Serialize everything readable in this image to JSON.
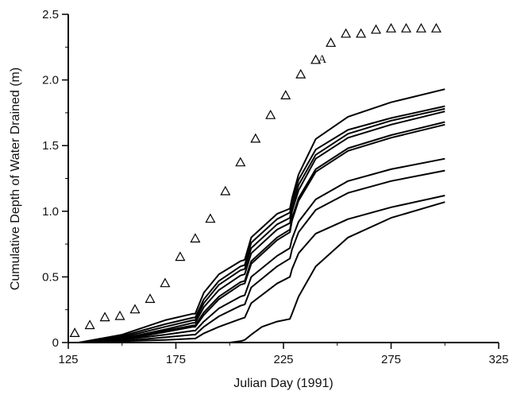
{
  "chart_data": {
    "type": "line",
    "title": "",
    "xlabel": "Julian Day (1991)",
    "ylabel": "Cumulative Depth of Water Drained (m)",
    "xlim": [
      125,
      325
    ],
    "ylim": [
      0,
      2.5
    ],
    "xticks": [
      125,
      175,
      225,
      275,
      325
    ],
    "yticks": [
      0,
      0.5,
      1.0,
      1.5,
      2.0,
      2.5
    ],
    "xtick_labels": [
      "125",
      "175",
      "225",
      "275",
      "325"
    ],
    "ytick_labels": [
      "0",
      "0.5",
      "1.0",
      "1.5",
      "2.0",
      "2.5"
    ],
    "grid": false,
    "legend": "none",
    "annotations": [
      {
        "text": "A",
        "x": 243,
        "y": 2.16
      }
    ],
    "scatter_series": {
      "marker": "open-triangle",
      "points": [
        [
          128,
          0.07
        ],
        [
          135,
          0.13
        ],
        [
          142,
          0.19
        ],
        [
          149,
          0.2
        ],
        [
          156,
          0.25
        ],
        [
          163,
          0.33
        ],
        [
          170,
          0.45
        ],
        [
          177,
          0.65
        ],
        [
          184,
          0.79
        ],
        [
          191,
          0.94
        ],
        [
          198,
          1.15
        ],
        [
          205,
          1.37
        ],
        [
          212,
          1.55
        ],
        [
          219,
          1.73
        ],
        [
          226,
          1.88
        ],
        [
          233,
          2.04
        ],
        [
          240,
          2.15
        ],
        [
          247,
          2.28
        ],
        [
          254,
          2.35
        ],
        [
          261,
          2.35
        ],
        [
          268,
          2.38
        ],
        [
          275,
          2.39
        ],
        [
          282,
          2.39
        ],
        [
          289,
          2.39
        ],
        [
          296,
          2.39
        ]
      ]
    },
    "line_series": [
      {
        "points": [
          [
            130,
            0
          ],
          [
            150,
            0.06
          ],
          [
            170,
            0.17
          ],
          [
            183,
            0.22
          ],
          [
            184,
            0.22
          ],
          [
            188,
            0.38
          ],
          [
            195,
            0.52
          ],
          [
            205,
            0.62
          ],
          [
            207,
            0.63
          ],
          [
            210,
            0.8
          ],
          [
            222,
            0.98
          ],
          [
            228,
            1.02
          ],
          [
            229,
            1.1
          ],
          [
            232,
            1.28
          ],
          [
            240,
            1.55
          ],
          [
            255,
            1.72
          ],
          [
            275,
            1.83
          ],
          [
            300,
            1.93
          ]
        ]
      },
      {
        "points": [
          [
            130,
            0
          ],
          [
            150,
            0.05
          ],
          [
            170,
            0.14
          ],
          [
            183,
            0.19
          ],
          [
            184,
            0.19
          ],
          [
            188,
            0.33
          ],
          [
            195,
            0.47
          ],
          [
            205,
            0.58
          ],
          [
            207,
            0.59
          ],
          [
            210,
            0.76
          ],
          [
            222,
            0.94
          ],
          [
            228,
            0.99
          ],
          [
            229,
            1.08
          ],
          [
            232,
            1.24
          ],
          [
            240,
            1.47
          ],
          [
            255,
            1.62
          ],
          [
            275,
            1.71
          ],
          [
            300,
            1.8
          ]
        ]
      },
      {
        "points": [
          [
            130,
            0
          ],
          [
            150,
            0.04
          ],
          [
            170,
            0.12
          ],
          [
            183,
            0.17
          ],
          [
            184,
            0.17
          ],
          [
            188,
            0.3
          ],
          [
            195,
            0.44
          ],
          [
            205,
            0.55
          ],
          [
            207,
            0.56
          ],
          [
            210,
            0.72
          ],
          [
            222,
            0.9
          ],
          [
            228,
            0.95
          ],
          [
            229,
            1.04
          ],
          [
            232,
            1.2
          ],
          [
            240,
            1.43
          ],
          [
            255,
            1.59
          ],
          [
            275,
            1.69
          ],
          [
            300,
            1.78
          ]
        ]
      },
      {
        "points": [
          [
            130,
            0
          ],
          [
            150,
            0.03
          ],
          [
            170,
            0.1
          ],
          [
            183,
            0.15
          ],
          [
            184,
            0.15
          ],
          [
            188,
            0.27
          ],
          [
            195,
            0.4
          ],
          [
            205,
            0.51
          ],
          [
            207,
            0.52
          ],
          [
            210,
            0.68
          ],
          [
            222,
            0.86
          ],
          [
            228,
            0.91
          ],
          [
            229,
            1.0
          ],
          [
            232,
            1.16
          ],
          [
            240,
            1.4
          ],
          [
            255,
            1.56
          ],
          [
            275,
            1.66
          ],
          [
            300,
            1.76
          ]
        ]
      },
      {
        "points": [
          [
            130,
            0
          ],
          [
            150,
            0.03
          ],
          [
            170,
            0.09
          ],
          [
            183,
            0.13
          ],
          [
            184,
            0.13
          ],
          [
            188,
            0.23
          ],
          [
            195,
            0.35
          ],
          [
            205,
            0.46
          ],
          [
            207,
            0.47
          ],
          [
            210,
            0.62
          ],
          [
            222,
            0.8
          ],
          [
            228,
            0.86
          ],
          [
            229,
            0.95
          ],
          [
            232,
            1.1
          ],
          [
            240,
            1.32
          ],
          [
            255,
            1.48
          ],
          [
            275,
            1.58
          ],
          [
            300,
            1.68
          ]
        ]
      },
      {
        "points": [
          [
            130,
            0
          ],
          [
            150,
            0.02
          ],
          [
            170,
            0.08
          ],
          [
            183,
            0.12
          ],
          [
            184,
            0.12
          ],
          [
            188,
            0.21
          ],
          [
            195,
            0.33
          ],
          [
            205,
            0.44
          ],
          [
            207,
            0.45
          ],
          [
            210,
            0.6
          ],
          [
            222,
            0.78
          ],
          [
            228,
            0.84
          ],
          [
            229,
            0.93
          ],
          [
            232,
            1.08
          ],
          [
            240,
            1.3
          ],
          [
            255,
            1.46
          ],
          [
            275,
            1.56
          ],
          [
            300,
            1.66
          ]
        ]
      },
      {
        "points": [
          [
            130,
            0
          ],
          [
            150,
            0.02
          ],
          [
            170,
            0.06
          ],
          [
            183,
            0.09
          ],
          [
            184,
            0.09
          ],
          [
            188,
            0.16
          ],
          [
            195,
            0.26
          ],
          [
            205,
            0.35
          ],
          [
            207,
            0.36
          ],
          [
            210,
            0.5
          ],
          [
            222,
            0.66
          ],
          [
            228,
            0.72
          ],
          [
            229,
            0.79
          ],
          [
            232,
            0.92
          ],
          [
            240,
            1.09
          ],
          [
            255,
            1.23
          ],
          [
            275,
            1.32
          ],
          [
            300,
            1.4
          ]
        ]
      },
      {
        "points": [
          [
            130,
            0
          ],
          [
            150,
            0.01
          ],
          [
            170,
            0.04
          ],
          [
            183,
            0.06
          ],
          [
            184,
            0.06
          ],
          [
            188,
            0.12
          ],
          [
            195,
            0.2
          ],
          [
            205,
            0.28
          ],
          [
            207,
            0.29
          ],
          [
            210,
            0.42
          ],
          [
            222,
            0.58
          ],
          [
            228,
            0.64
          ],
          [
            229,
            0.71
          ],
          [
            232,
            0.84
          ],
          [
            240,
            1.01
          ],
          [
            255,
            1.14
          ],
          [
            275,
            1.23
          ],
          [
            300,
            1.31
          ]
        ]
      },
      {
        "points": [
          [
            130,
            0
          ],
          [
            150,
            0.01
          ],
          [
            170,
            0.02
          ],
          [
            183,
            0.03
          ],
          [
            184,
            0.03
          ],
          [
            188,
            0.07
          ],
          [
            195,
            0.12
          ],
          [
            205,
            0.18
          ],
          [
            207,
            0.19
          ],
          [
            210,
            0.3
          ],
          [
            222,
            0.45
          ],
          [
            228,
            0.5
          ],
          [
            229,
            0.56
          ],
          [
            232,
            0.68
          ],
          [
            240,
            0.83
          ],
          [
            255,
            0.94
          ],
          [
            275,
            1.03
          ],
          [
            300,
            1.12
          ]
        ]
      },
      {
        "points": [
          [
            130,
            0
          ],
          [
            170,
            0
          ],
          [
            200,
            0
          ],
          [
            205,
            0.01
          ],
          [
            207,
            0.02
          ],
          [
            210,
            0.06
          ],
          [
            215,
            0.12
          ],
          [
            222,
            0.16
          ],
          [
            228,
            0.18
          ],
          [
            229,
            0.22
          ],
          [
            232,
            0.35
          ],
          [
            240,
            0.58
          ],
          [
            255,
            0.8
          ],
          [
            275,
            0.95
          ],
          [
            300,
            1.07
          ]
        ]
      }
    ]
  }
}
